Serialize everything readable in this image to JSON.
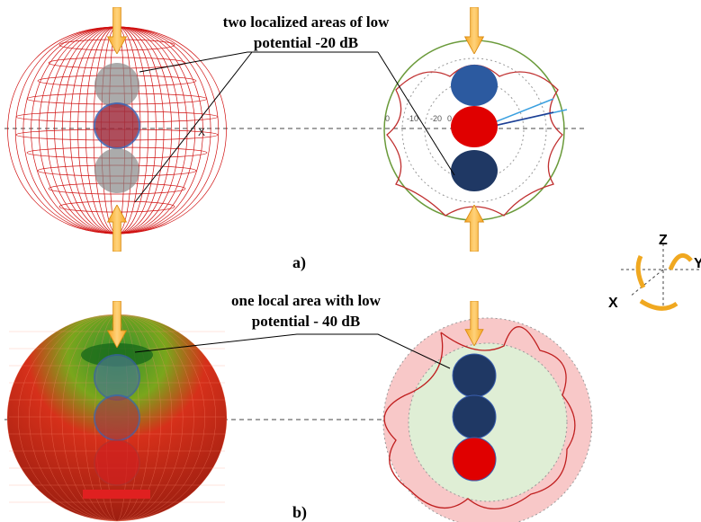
{
  "panels": [
    {
      "label": "a)",
      "annotation": [
        "two localized areas of low",
        "potential -20 dB"
      ],
      "axis_marker": "X",
      "polar_labels": [
        "0",
        "-10",
        "-20",
        "0"
      ]
    },
    {
      "label": "b)",
      "annotation": [
        "one local area with low",
        "potential - 40 dB"
      ]
    }
  ],
  "axes_icon": {
    "z": "Z",
    "x": "X",
    "y": "Y"
  }
}
